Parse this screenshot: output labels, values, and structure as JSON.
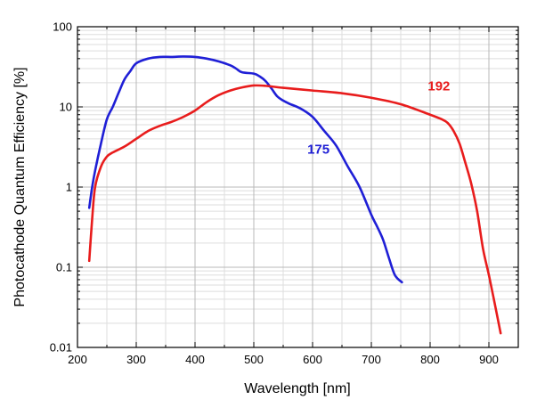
{
  "chart_data": {
    "type": "line",
    "title": "",
    "xlabel": "Wavelength [nm]",
    "ylabel": "Photocathode Quantum Efficiency [%]",
    "xlim": [
      200,
      950
    ],
    "ylim": [
      0.01,
      100
    ],
    "yscale": "log",
    "grid": true,
    "x_ticks": [
      200,
      300,
      400,
      500,
      600,
      700,
      800,
      900
    ],
    "y_ticks": [
      0.01,
      0.1,
      1,
      10,
      100
    ],
    "y_tick_labels": [
      "0.01",
      "0.1",
      "1",
      "10",
      "100"
    ],
    "series": [
      {
        "name": "175",
        "color": "#1f1fd6",
        "label_at": [
          610,
          2.6
        ],
        "points": [
          [
            220,
            0.55
          ],
          [
            225,
            1.0
          ],
          [
            230,
            1.6
          ],
          [
            240,
            3.5
          ],
          [
            250,
            7.0
          ],
          [
            260,
            10.0
          ],
          [
            270,
            15.0
          ],
          [
            280,
            22.0
          ],
          [
            290,
            28.0
          ],
          [
            300,
            35.0
          ],
          [
            320,
            40.0
          ],
          [
            340,
            42.0
          ],
          [
            360,
            42.0
          ],
          [
            380,
            42.5
          ],
          [
            400,
            42.0
          ],
          [
            420,
            40.0
          ],
          [
            440,
            37.0
          ],
          [
            460,
            33.0
          ],
          [
            470,
            30.0
          ],
          [
            480,
            27.0
          ],
          [
            500,
            26.0
          ],
          [
            510,
            24.0
          ],
          [
            520,
            21.0
          ],
          [
            530,
            17.0
          ],
          [
            540,
            13.5
          ],
          [
            550,
            12.0
          ],
          [
            560,
            11.0
          ],
          [
            580,
            9.5
          ],
          [
            600,
            7.5
          ],
          [
            620,
            5.0
          ],
          [
            640,
            3.3
          ],
          [
            660,
            1.8
          ],
          [
            680,
            1.0
          ],
          [
            700,
            0.45
          ],
          [
            710,
            0.32
          ],
          [
            720,
            0.22
          ],
          [
            730,
            0.13
          ],
          [
            740,
            0.08
          ],
          [
            752,
            0.065
          ]
        ]
      },
      {
        "name": "192",
        "color": "#e81c1c",
        "label_at": [
          815,
          16.0
        ],
        "points": [
          [
            220,
            0.12
          ],
          [
            225,
            0.4
          ],
          [
            230,
            1.0
          ],
          [
            240,
            1.8
          ],
          [
            250,
            2.4
          ],
          [
            260,
            2.7
          ],
          [
            280,
            3.2
          ],
          [
            300,
            4.0
          ],
          [
            320,
            5.0
          ],
          [
            340,
            5.8
          ],
          [
            360,
            6.5
          ],
          [
            380,
            7.5
          ],
          [
            400,
            9.0
          ],
          [
            420,
            11.5
          ],
          [
            440,
            14.0
          ],
          [
            460,
            16.0
          ],
          [
            480,
            17.5
          ],
          [
            500,
            18.5
          ],
          [
            520,
            18.3
          ],
          [
            550,
            17.3
          ],
          [
            600,
            16.0
          ],
          [
            650,
            14.8
          ],
          [
            700,
            13.0
          ],
          [
            750,
            10.8
          ],
          [
            800,
            8.0
          ],
          [
            820,
            7.0
          ],
          [
            830,
            6.3
          ],
          [
            840,
            5.0
          ],
          [
            850,
            3.5
          ],
          [
            860,
            2.0
          ],
          [
            870,
            1.1
          ],
          [
            880,
            0.5
          ],
          [
            890,
            0.17
          ],
          [
            900,
            0.08
          ],
          [
            910,
            0.035
          ],
          [
            920,
            0.015
          ]
        ]
      }
    ]
  }
}
